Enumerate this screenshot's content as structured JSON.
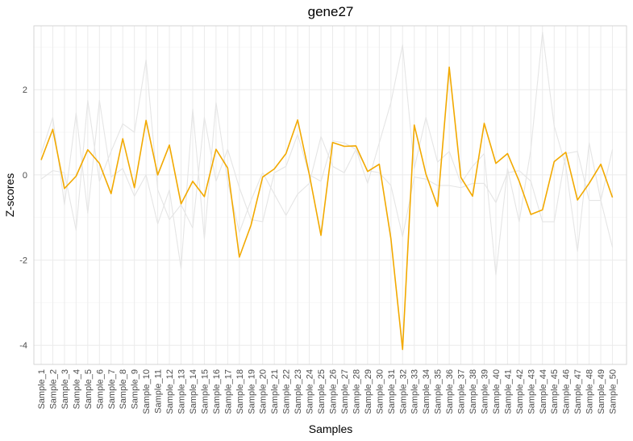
{
  "chart_data": {
    "type": "line",
    "title": "gene27",
    "xlabel": "Samples",
    "ylabel": "Z-scores",
    "ylim": [
      -4.45,
      3.5
    ],
    "yticks": [
      -4,
      -2,
      0,
      2
    ],
    "grid": true,
    "legend": "none",
    "categories": [
      "Sample_1",
      "Sample_2",
      "Sample_3",
      "Sample_4",
      "Sample_5",
      "Sample_6",
      "Sample_7",
      "Sample_8",
      "Sample_9",
      "Sample_10",
      "Sample_11",
      "Sample_12",
      "Sample_13",
      "Sample_14",
      "Sample_15",
      "Sample_16",
      "Sample_17",
      "Sample_18",
      "Sample_19",
      "Sample_20",
      "Sample_21",
      "Sample_22",
      "Sample_23",
      "Sample_24",
      "Sample_25",
      "Sample_26",
      "Sample_27",
      "Sample_28",
      "Sample_29",
      "Sample_30",
      "Sample_31",
      "Sample_32",
      "Sample_33",
      "Sample_34",
      "Sample_35",
      "Sample_36",
      "Sample_37",
      "Sample_38",
      "Sample_39",
      "Sample_40",
      "Sample_41",
      "Sample_42",
      "Sample_43",
      "Sample_44",
      "Sample_45",
      "Sample_46",
      "Sample_47",
      "Sample_48",
      "Sample_49",
      "Sample_50"
    ],
    "series": [
      {
        "color": "#e5e5e5",
        "values": [
          0.5,
          1.35,
          -0.7,
          1.45,
          -0.9,
          1.75,
          -0.05,
          0.15,
          -0.5,
          0.0,
          -1.15,
          -0.35,
          -2.2,
          1.55,
          -1.5,
          1.7,
          -0.15,
          -1.35,
          -0.6,
          0.05,
          -0.45,
          -0.95,
          -0.45,
          -0.2,
          0.9,
          0.2,
          0.05,
          0.6,
          -0.2,
          0.75,
          1.7,
          3.05,
          0.15,
          1.35,
          0.3,
          0.55,
          -0.2,
          0.2,
          0.5,
          -2.35,
          0.15,
          -1.1,
          0.6,
          3.35,
          1.15,
          0.2,
          -1.8,
          0.75,
          -0.6,
          -1.7
        ]
      },
      {
        "color": "#e5e5e5",
        "values": [
          -0.1,
          0.1,
          0.05,
          -1.3,
          1.75,
          -0.15,
          0.55,
          1.2,
          1.0,
          2.7,
          -0.35,
          -1.05,
          -0.7,
          -1.25,
          1.35,
          -0.15,
          0.6,
          -0.3,
          -1.05,
          -1.1,
          0.05,
          0.2,
          0.95,
          0.0,
          -0.15,
          0.8,
          0.75,
          0.6,
          0.1,
          0.05,
          -0.25,
          -1.45,
          -0.05,
          -0.1,
          -0.25,
          -0.25,
          -0.3,
          -0.2,
          -0.2,
          -0.65,
          0.05,
          0.1,
          -0.15,
          -1.1,
          -1.1,
          0.5,
          0.55,
          -0.6,
          -0.6,
          0.6
        ]
      },
      {
        "color": "#f2a900",
        "values": [
          0.35,
          1.07,
          -0.32,
          -0.03,
          0.59,
          0.27,
          -0.44,
          0.85,
          -0.3,
          1.28,
          0.0,
          0.7,
          -0.68,
          -0.15,
          -0.51,
          0.6,
          0.16,
          -1.93,
          -1.18,
          -0.05,
          0.14,
          0.5,
          1.29,
          0.01,
          -1.42,
          0.76,
          0.67,
          0.68,
          0.08,
          0.25,
          -1.5,
          -4.1,
          1.17,
          0.02,
          -0.74,
          2.53,
          -0.06,
          -0.5,
          1.21,
          0.27,
          0.5,
          -0.15,
          -0.93,
          -0.82,
          0.31,
          0.53,
          -0.59,
          -0.2,
          0.25,
          -0.53
        ]
      }
    ]
  }
}
